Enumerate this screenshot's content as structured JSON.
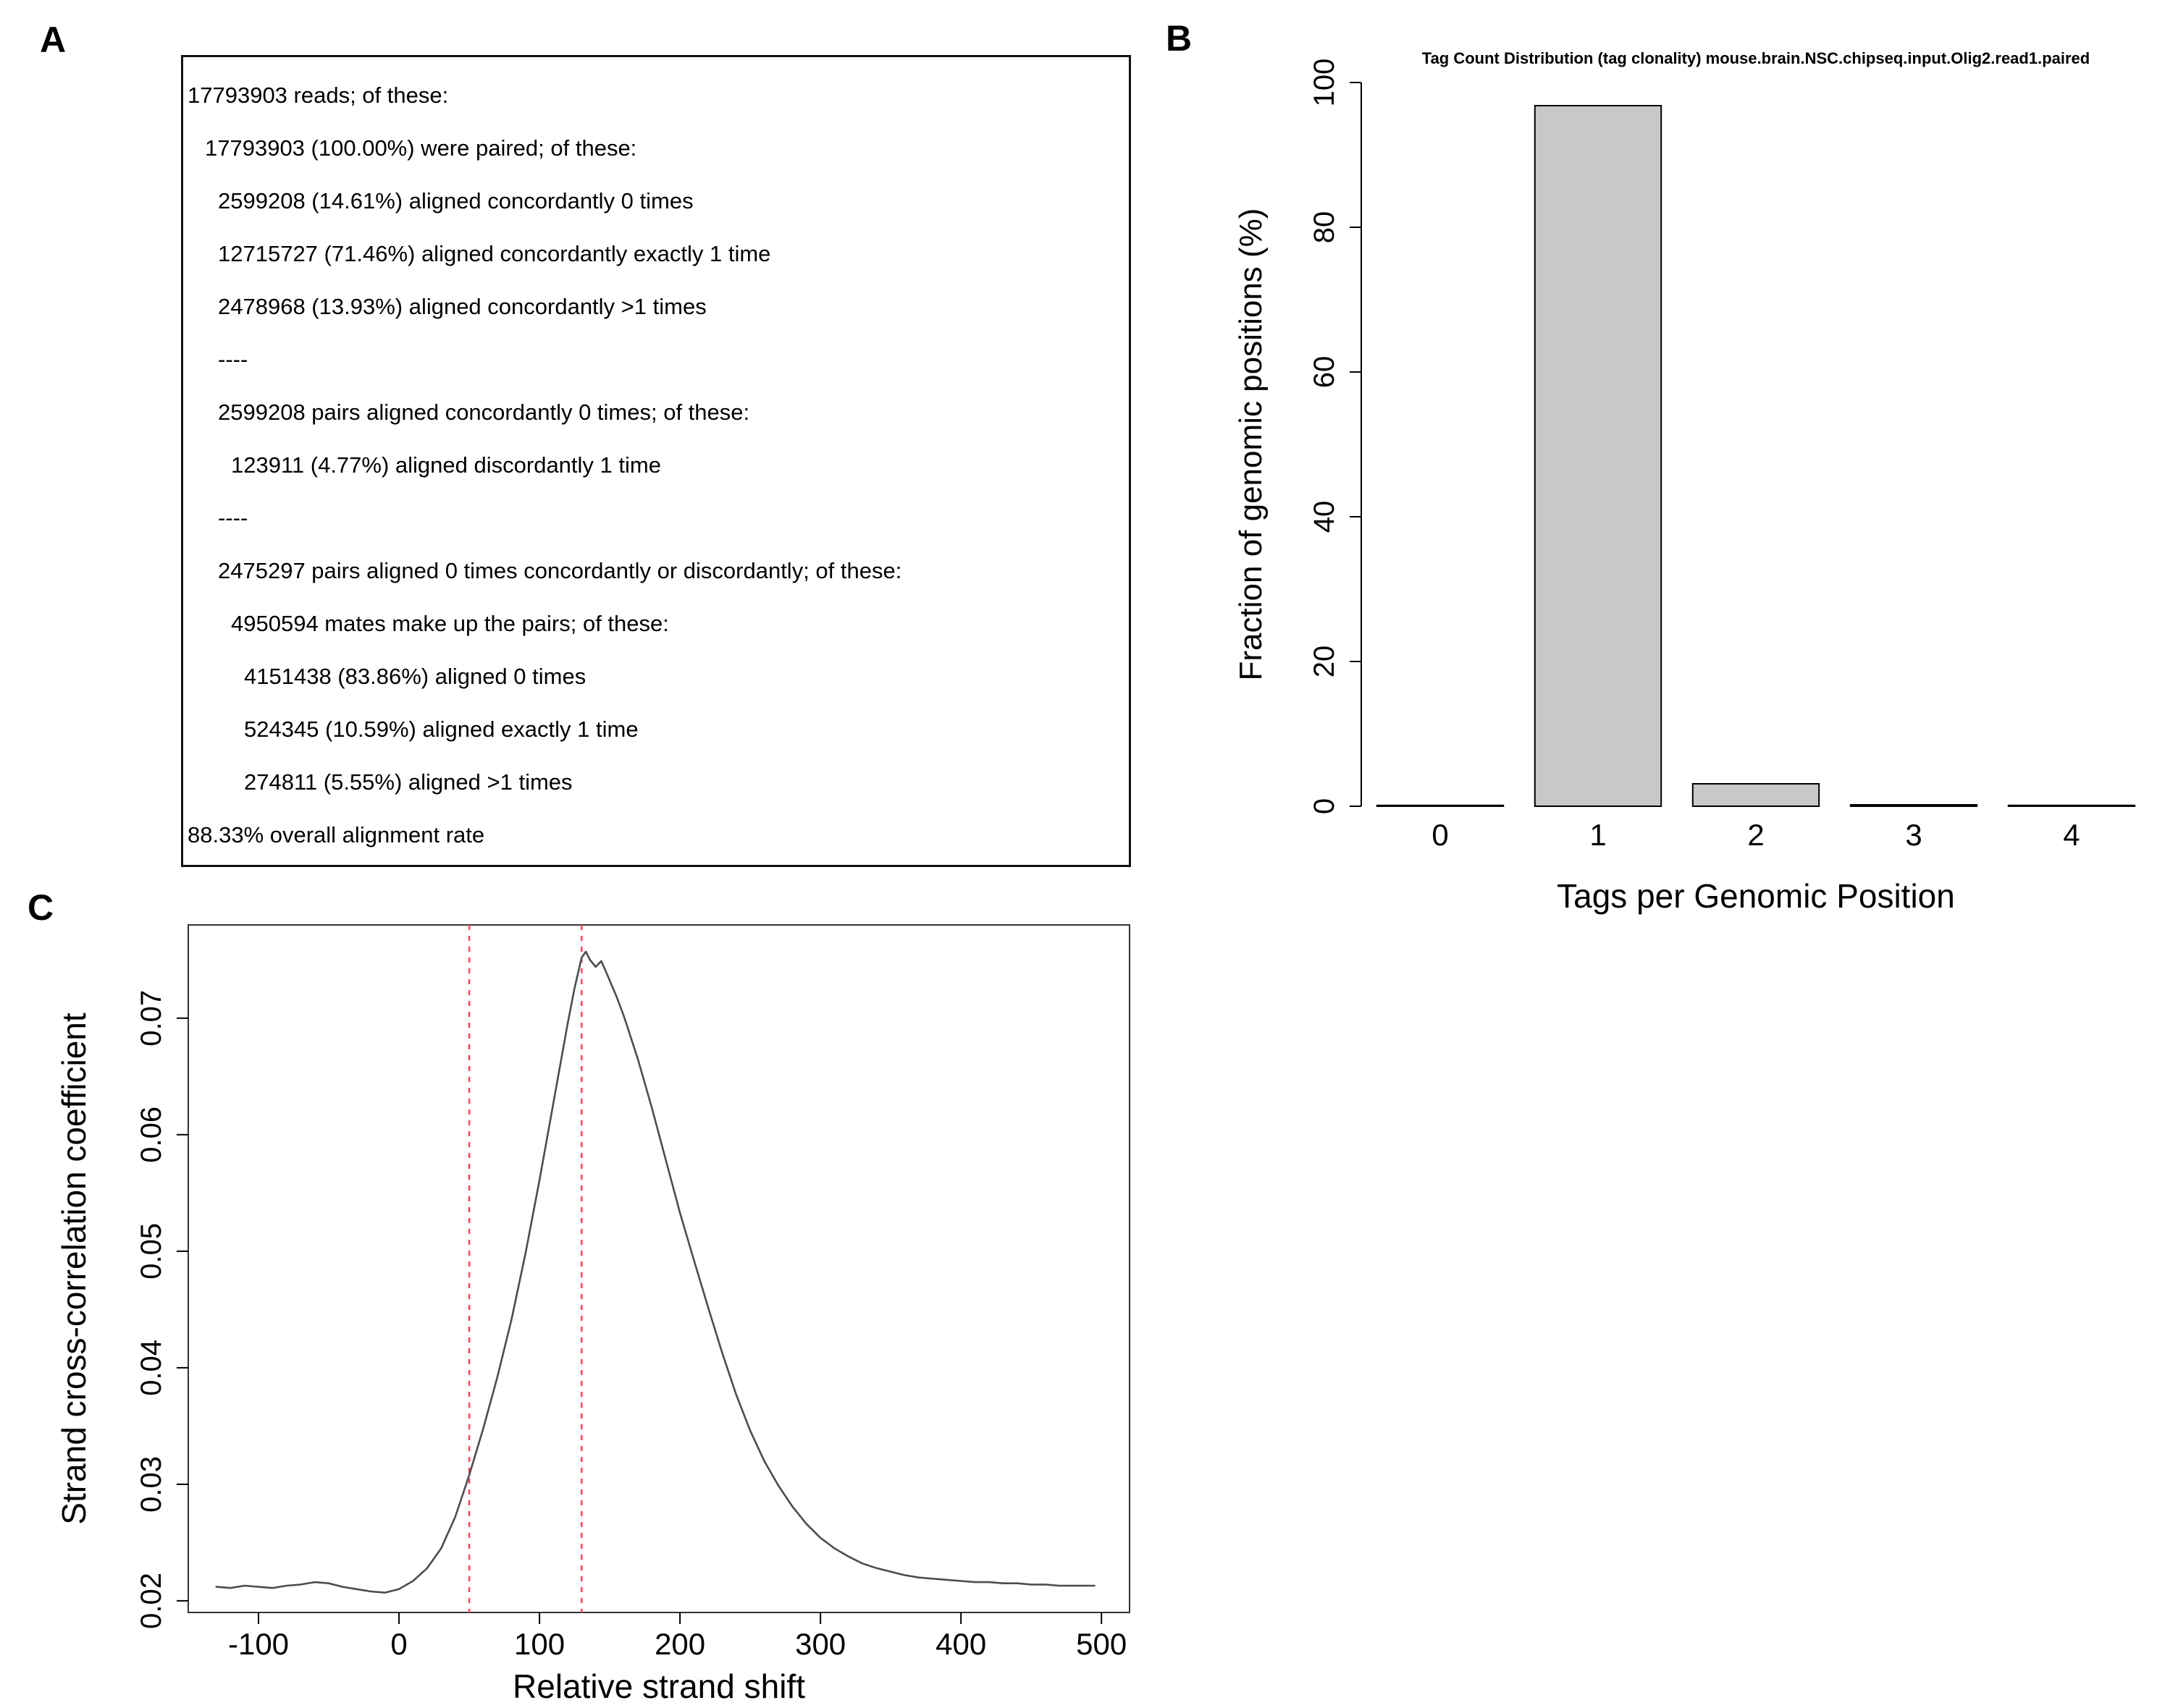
{
  "figure": {
    "background": "#ffffff"
  },
  "panel_a": {
    "label": "A",
    "lines": [
      {
        "indent": 0,
        "text": "17793903 reads; of these:"
      },
      {
        "indent": 1,
        "text": "17793903 (100.00%) were paired; of these:"
      },
      {
        "indent": 2,
        "text": "2599208 (14.61%) aligned concordantly 0 times"
      },
      {
        "indent": 2,
        "text": "12715727 (71.46%) aligned concordantly exactly 1 time"
      },
      {
        "indent": 2,
        "text": "2478968 (13.93%) aligned concordantly >1 times"
      },
      {
        "indent": 2,
        "text": "----"
      },
      {
        "indent": 2,
        "text": "2599208 pairs aligned concordantly 0 times; of these:"
      },
      {
        "indent": 3,
        "text": "123911 (4.77%) aligned discordantly 1 time"
      },
      {
        "indent": 2,
        "text": "----"
      },
      {
        "indent": 2,
        "text": "2475297 pairs aligned 0 times concordantly or discordantly; of these:"
      },
      {
        "indent": 3,
        "text": "4950594 mates make up the pairs; of these:"
      },
      {
        "indent": 4,
        "text": "4151438 (83.86%) aligned 0 times"
      },
      {
        "indent": 4,
        "text": "524345 (10.59%) aligned exactly 1 time"
      },
      {
        "indent": 4,
        "text": "274811 (5.55%) aligned >1 times"
      },
      {
        "indent": 0,
        "text": "88.33% overall alignment rate"
      }
    ]
  },
  "panel_b": {
    "label": "B"
  },
  "panel_c": {
    "label": "C"
  },
  "chart_data": [
    {
      "panel": "B",
      "type": "bar",
      "title": "Tag Count Distribution (tag clonality) mouse.brain.NSC.chipseq.input.Olig2.read1.paired",
      "categories": [
        "0",
        "1",
        "2",
        "3",
        "4"
      ],
      "values": [
        0.1,
        96.8,
        3.1,
        0.2,
        0.1
      ],
      "xlabel": "Tags per Genomic Position",
      "ylabel": "Fraction of genomic positions (%)",
      "ylim": [
        0,
        100
      ],
      "yticks": [
        0,
        20,
        40,
        60,
        80,
        100
      ],
      "bar_fill": "#c8c8c8",
      "bar_stroke": "#000000",
      "grid": false,
      "legend": "none"
    },
    {
      "panel": "C",
      "type": "line",
      "title": "",
      "xlabel": "Relative strand shift",
      "ylabel": "Strand cross-correlation coefficient",
      "xlim": [
        -150,
        520
      ],
      "ylim": [
        0.019,
        0.078
      ],
      "xticks": [
        -100,
        0,
        100,
        200,
        300,
        400,
        500
      ],
      "yticks": [
        0.02,
        0.03,
        0.04,
        0.05,
        0.06,
        0.07
      ],
      "line_color": "#4d4d4d",
      "box": true,
      "grid": false,
      "legend": "none",
      "vlines": {
        "color": "#ff4455",
        "style": "dashed",
        "x": [
          50,
          130
        ]
      },
      "points": [
        [
          -130,
          0.0212
        ],
        [
          -120,
          0.0211
        ],
        [
          -110,
          0.0213
        ],
        [
          -100,
          0.0212
        ],
        [
          -90,
          0.0211
        ],
        [
          -80,
          0.0213
        ],
        [
          -70,
          0.0214
        ],
        [
          -60,
          0.0216
        ],
        [
          -50,
          0.0215
        ],
        [
          -40,
          0.0212
        ],
        [
          -30,
          0.021
        ],
        [
          -20,
          0.0208
        ],
        [
          -10,
          0.0207
        ],
        [
          0,
          0.021
        ],
        [
          10,
          0.0217
        ],
        [
          20,
          0.0228
        ],
        [
          30,
          0.0245
        ],
        [
          40,
          0.0272
        ],
        [
          50,
          0.0308
        ],
        [
          60,
          0.0348
        ],
        [
          70,
          0.0392
        ],
        [
          80,
          0.0441
        ],
        [
          90,
          0.0498
        ],
        [
          100,
          0.0561
        ],
        [
          110,
          0.0628
        ],
        [
          120,
          0.0695
        ],
        [
          125,
          0.0726
        ],
        [
          130,
          0.0752
        ],
        [
          133,
          0.0757
        ],
        [
          136,
          0.075
        ],
        [
          140,
          0.0744
        ],
        [
          144,
          0.0749
        ],
        [
          148,
          0.0738
        ],
        [
          155,
          0.0718
        ],
        [
          160,
          0.0702
        ],
        [
          170,
          0.0665
        ],
        [
          180,
          0.0623
        ],
        [
          190,
          0.0578
        ],
        [
          200,
          0.0533
        ],
        [
          210,
          0.0492
        ],
        [
          220,
          0.0452
        ],
        [
          230,
          0.0413
        ],
        [
          240,
          0.0377
        ],
        [
          250,
          0.0346
        ],
        [
          260,
          0.032
        ],
        [
          270,
          0.0299
        ],
        [
          280,
          0.0281
        ],
        [
          290,
          0.0266
        ],
        [
          300,
          0.0254
        ],
        [
          310,
          0.0245
        ],
        [
          320,
          0.0238
        ],
        [
          330,
          0.0232
        ],
        [
          340,
          0.0228
        ],
        [
          350,
          0.0225
        ],
        [
          360,
          0.0222
        ],
        [
          370,
          0.022
        ],
        [
          380,
          0.0219
        ],
        [
          390,
          0.0218
        ],
        [
          400,
          0.0217
        ],
        [
          410,
          0.0216
        ],
        [
          420,
          0.0216
        ],
        [
          430,
          0.0215
        ],
        [
          440,
          0.0215
        ],
        [
          450,
          0.0214
        ],
        [
          460,
          0.0214
        ],
        [
          470,
          0.0213
        ],
        [
          480,
          0.0213
        ],
        [
          490,
          0.0213
        ],
        [
          495,
          0.0213
        ]
      ]
    }
  ]
}
